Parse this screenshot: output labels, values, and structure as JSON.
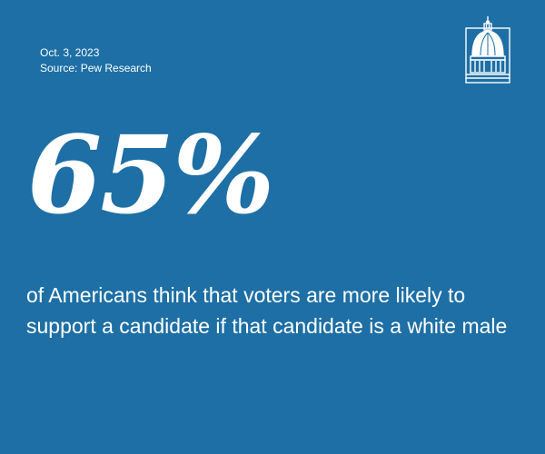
{
  "meta": {
    "date": "Oct. 3, 2023",
    "source": "Source: Pew Research"
  },
  "logo": {
    "icon": "capitol-dome-icon"
  },
  "stat": {
    "value": "65%",
    "statement": "of Americans think that voters are more likely to support a candidate if that candidate is a white male"
  },
  "colors": {
    "background": "#1d6fa5",
    "text": "#ffffff"
  }
}
